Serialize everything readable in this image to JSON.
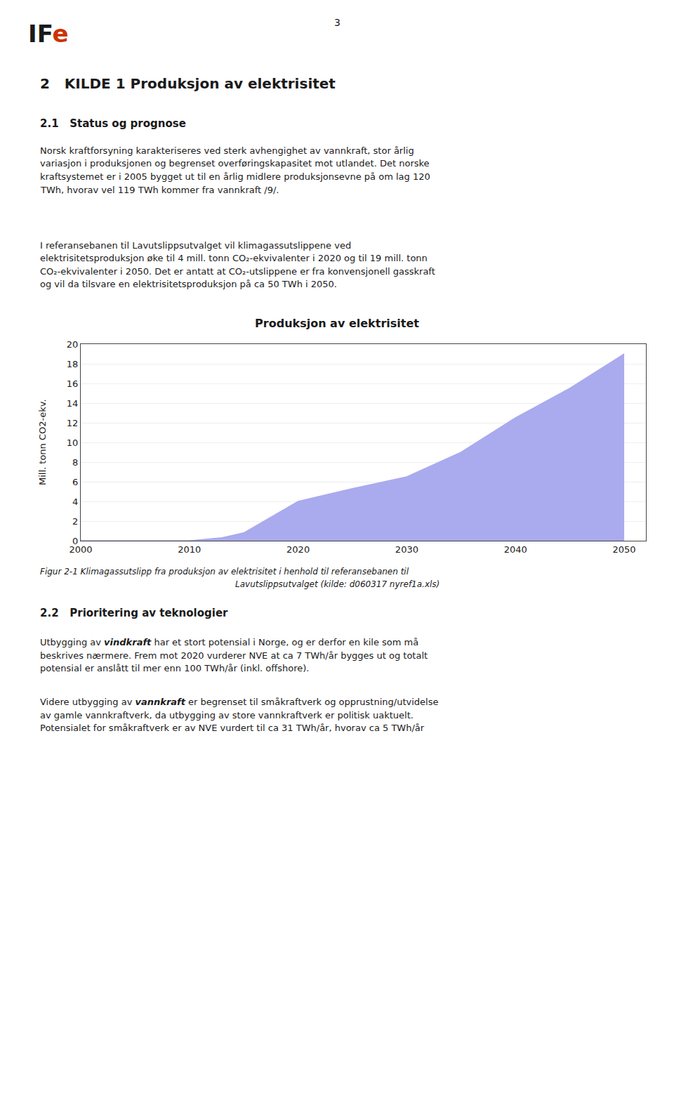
{
  "page": {
    "logo": {
      "text": "IF",
      "accent": "e",
      "color": "#1a1a1a",
      "accent_color": "#cc3300"
    },
    "page_number": "3",
    "text_color": "#1a1a1a",
    "heading1": "2   KILDE 1 Produksjon av elektrisitet",
    "heading2": "2.1   Status og prognose",
    "paragraph1": [
      "Norsk kraftforsyning karakteriseres ved sterk avhengighet av vannkraft, stor årlig",
      "variasjon i produksjonen og begrenset overføringskapasitet mot utlandet. Det norske",
      "kraftsystemet er i 2005 bygget ut til en årlig midlere produksjonsevne på om lag 120",
      "TWh, hvorav vel 119 TWh kommer fra vannkraft /9/."
    ],
    "paragraph2": [
      "I referansebanen til Lavutslippsutvalget vil klimagassutslippene ved",
      "elektrisitetsproduksjon øke til 4 mill. tonn CO₂-ekvivalenter i 2020 og til 19 mill. tonn",
      "CO₂-ekvivalenter i 2050. Det er antatt at CO₂-utslippene er fra konvensjonell gasskraft",
      "og vil da tilsvare en elektrisitetsproduksjon på ca 50 TWh i 2050."
    ],
    "caption": [
      "Figur 2-1 Klimagassutslipp fra produksjon av elektrisitet i henhold til referansebanen til",
      "Lavutslippsutvalget (kilde: d060317 nyref1a.xls)"
    ],
    "heading3": "2.2   Prioritering av teknologier",
    "paragraph3": {
      "pre": "Utbygging av ",
      "bold": "vindkraft",
      "post_lines": [
        " har et stort potensial i Norge, og er derfor en kile som må",
        "beskrives nærmere. Frem mot 2020 vurderer NVE at ca 7 TWh/år bygges ut og totalt",
        "potensial er anslått til mer enn 100 TWh/år (inkl. offshore)."
      ]
    },
    "paragraph4": {
      "pre": "Videre utbygging av ",
      "bold": "vannkraft",
      "post_lines": [
        " er begrenset til småkraftverk og opprustning/utvidelse",
        "av gamle vannkraftverk, da utbygging av store vannkraftverk er politisk uaktuelt.",
        "Potensialet for småkraftverk er av NVE vurdert til ca 31 TWh/år, hvorav ca 5 TWh/år"
      ]
    }
  },
  "chart_data": {
    "type": "area",
    "title": "Produksjon av elektrisitet",
    "ylabel": "Mill. tonn CO2-ekv.",
    "x": [
      2000,
      2005,
      2010,
      2013,
      2015,
      2020,
      2025,
      2030,
      2035,
      2040,
      2045,
      2050
    ],
    "values": [
      0.0,
      0.0,
      0.0,
      0.3,
      0.8,
      4.0,
      5.3,
      6.5,
      9.0,
      12.5,
      15.5,
      19.0
    ],
    "color": "#aaaaee",
    "xlim": [
      2000,
      2052
    ],
    "xticks": [
      2000,
      2010,
      2020,
      2030,
      2040,
      2050
    ],
    "ylim": [
      0,
      20
    ],
    "yticks": [
      0,
      2,
      4,
      6,
      8,
      10,
      12,
      14,
      16,
      18,
      20
    ],
    "grid": true
  }
}
